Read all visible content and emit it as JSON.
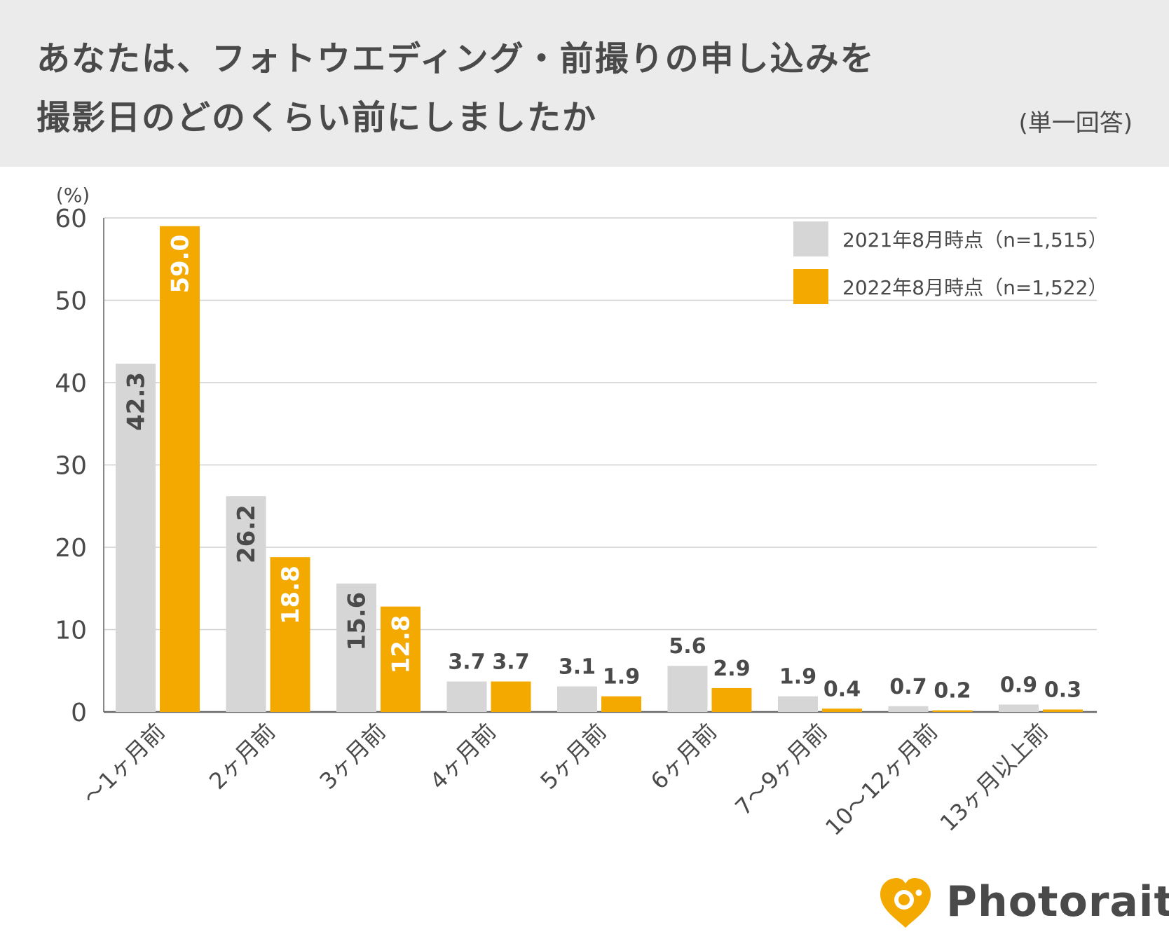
{
  "header": {
    "title_line1": "あなたは、フォトウエディング・前撮りの申し込みを",
    "title_line2": "撮影日のどのくらい前にしましたか",
    "answer_type": "(単一回答)"
  },
  "chart_data": {
    "type": "bar",
    "y_unit_label": "(%)",
    "ylim": [
      0,
      60
    ],
    "yticks": [
      0,
      10,
      20,
      30,
      40,
      50,
      60
    ],
    "categories": [
      "〜1ヶ月前",
      "2ヶ月前",
      "3ヶ月前",
      "4ヶ月前",
      "5ヶ月前",
      "6ヶ月前",
      "7〜9ヶ月前",
      "10〜12ヶ月前",
      "13ヶ月以上前"
    ],
    "series": [
      {
        "name": "2021年8月時点（n=1,515）",
        "color": "#d6d6d6",
        "label_color_inside": "#4a4a4a",
        "values": [
          42.3,
          26.2,
          15.6,
          3.7,
          3.1,
          5.6,
          1.9,
          0.7,
          0.9
        ]
      },
      {
        "name": "2022年8月時点（n=1,522）",
        "color": "#f4a900",
        "label_color_inside": "#ffffff",
        "values": [
          59.0,
          18.8,
          12.8,
          3.7,
          1.9,
          2.9,
          0.4,
          0.2,
          0.3
        ]
      }
    ],
    "legend_position": "top-right",
    "grid": true
  },
  "brand": {
    "name": "Photorait",
    "accent_color": "#f4a900",
    "text_color": "#4a4a4a"
  }
}
